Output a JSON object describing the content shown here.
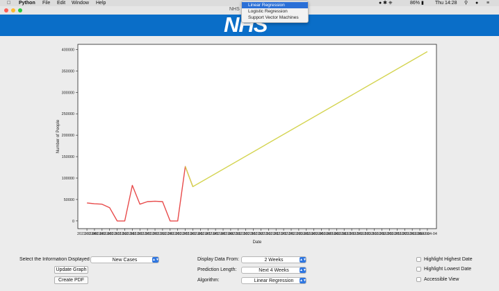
{
  "menubar": {
    "apple": "",
    "app": "Python",
    "items": [
      "File",
      "Edit",
      "Window",
      "Help"
    ],
    "battery": "86%",
    "clock": "Thu 14:28"
  },
  "window": {
    "title": "NHS"
  },
  "banner": {
    "logo": "NHS",
    "color": "#0a6ec8"
  },
  "algorithm_menu": {
    "options": [
      "Linear Regression",
      "Logistic Regression",
      "Support Vector Machines"
    ],
    "selected_index": 0
  },
  "chart_data": {
    "type": "line",
    "xlabel": "Date",
    "ylabel": "Number of People",
    "ylim": [
      0,
      400000
    ],
    "yticks": [
      0,
      50000,
      100000,
      150000,
      200000,
      250000,
      300000,
      350000,
      400000
    ],
    "xtick_labels": [
      "2022-01-04",
      "2022-01-06",
      "2022-01-08",
      "2022-01-10",
      "2022-01-12",
      "2022-01-14",
      "2022-01-16",
      "2022-01-18",
      "2022-01-20",
      "2022-01-22",
      "2022-01-24",
      "2022-01-26",
      "2022-01-28",
      "2022-01-30",
      "2022-02-01",
      "2022-02-03",
      "2022-02-05",
      "2022-02-07",
      "2022-02-09",
      "2022-02-11",
      "2022-02-13",
      "2022-02-15",
      "2022-02-17",
      "2022-02-19",
      "2022-02-21",
      "2022-02-23",
      "2022-02-25",
      "2022-02-27",
      "2022-03-01",
      "2022-03-03",
      "2022-03-05",
      "2022-03-07",
      "2022-03-09",
      "2022-03-11",
      "2022-03-13",
      "2022-03-15",
      "2022-03-17",
      "2022-03-19",
      "2022-03-21",
      "2022-03-23",
      "2022-03-25",
      "2022-03-27",
      "2022-03-29",
      "2022-03-31",
      "2022-04-02",
      "2022-04-04"
    ],
    "grid": false,
    "series": [
      {
        "color": "#e84a4a",
        "x_index": [
          0,
          1,
          2,
          3,
          4,
          5,
          6,
          7,
          8,
          9,
          10,
          11,
          12,
          13,
          14
        ],
        "values": [
          42000,
          40000,
          39000,
          31000,
          0,
          0,
          83000,
          39000,
          45000,
          46000,
          45000,
          0,
          0,
          127000,
          80000
        ]
      },
      {
        "color": "#d4d450",
        "x_index": [
          13,
          14,
          45
        ],
        "values": [
          127000,
          80000,
          395000
        ]
      }
    ]
  },
  "controls": {
    "info_label": "Select the Information Displayed",
    "info_value": "New Cases",
    "update_button": "Update Graph",
    "pdf_button": "Create PDF",
    "display_from_label": "Display Data From:",
    "display_from_value": "2 Weeks",
    "prediction_label": "Prediction Length:",
    "prediction_value": "Next 4 Weeks",
    "algorithm_label": "Algorithm:",
    "algorithm_value": "Linear Regression",
    "check_highest": "Highlight Highest Date",
    "check_lowest": "Highlight Lowest Date",
    "check_accessible": "Accessible View"
  }
}
